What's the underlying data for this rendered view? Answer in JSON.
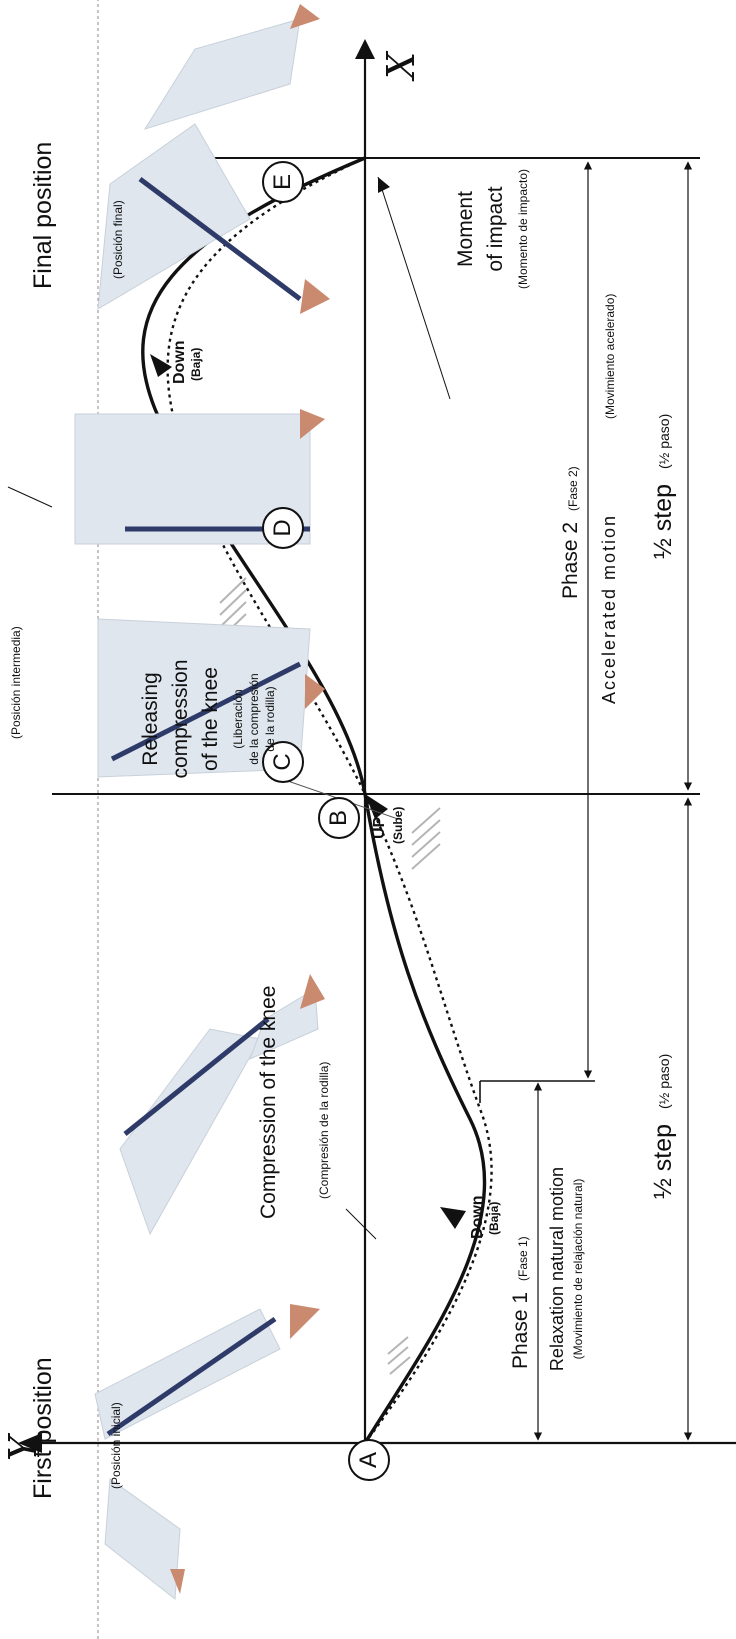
{
  "axes": {
    "x": "X",
    "y": "Y"
  },
  "points": [
    "A",
    "B",
    "C",
    "D",
    "E"
  ],
  "labels": {
    "first_position": "First position",
    "first_position_es": "(Posición inicial)",
    "final_position": "Final position",
    "final_position_es": "(Posición final)",
    "intermediate_es": "(Posición intermedia)",
    "compression": "Compression of the knee",
    "compression_es": "(Compresión de la rodilla)",
    "releasing_1": "Releasing",
    "releasing_2": "compression",
    "releasing_3": "of the knee",
    "releasing_es_1": "(Liberación",
    "releasing_es_2": "de la compresión",
    "releasing_es_3": "de la rodilla)",
    "moment_1": "Moment",
    "moment_2": "of impact",
    "moment_es": "(Momento de impacto)",
    "down_1": "Down",
    "down_1_es": "(Baja)",
    "up": "UP",
    "up_es": "(Sube)",
    "down_2": "Down",
    "down_2_es": "(Baja)"
  },
  "phases": {
    "phase1": "Phase 1",
    "phase1_es": "(Fase 1)",
    "phase1_motion": "Relaxation natural motion",
    "phase1_motion_es": "(Movimiento de relajación natural)",
    "phase2": "Phase 2",
    "phase2_es": "(Fase 2)",
    "phase2_motion": "Accelerated motion",
    "phase2_motion_es": "(Movimiento acelerado)"
  },
  "steps": {
    "half_step_1": "½ step",
    "half_step_1_es": "(½ paso)",
    "half_step_2": "½ step",
    "half_step_2_es": "(½ paso)"
  },
  "colors": {
    "line": "#111111",
    "pants": "#dfe6ee",
    "stripe": "#2e3b68",
    "foot": "#c98a70",
    "guide": "#8a8a8a"
  }
}
